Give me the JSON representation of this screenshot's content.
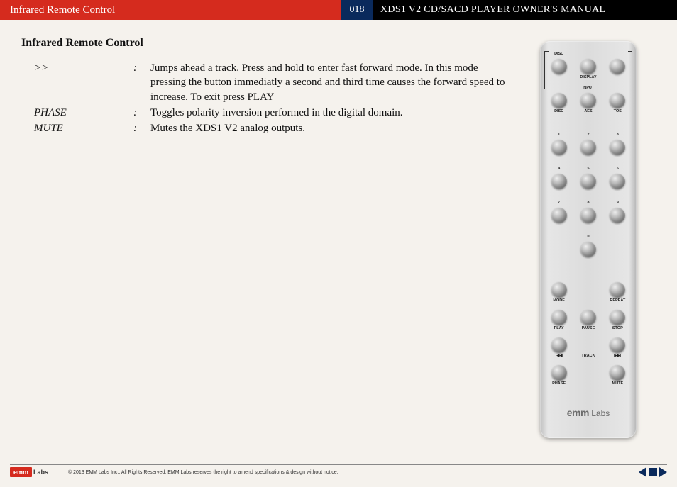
{
  "header": {
    "section_title": "Infrared Remote Control",
    "page_number": "018",
    "manual_title": "XDS1 V2 CD/SACD PLAYER OWNER'S MANUAL"
  },
  "body": {
    "heading": "Infrared Remote Control",
    "definitions": [
      {
        "term": ">>|",
        "description": "Jumps ahead a track. Press and hold to enter fast forward mode. In this mode pressing the button immediatly a second and third time causes the forward speed to increase. To exit press PLAY"
      },
      {
        "term": "PHASE",
        "description": "Toggles polarity inversion performed in the digital domain."
      },
      {
        "term": "MUTE",
        "description": "Mutes the XDS1 V2 analog outputs."
      }
    ]
  },
  "remote": {
    "top_buttons": [
      {
        "above": "DISC",
        "below": ""
      },
      {
        "above": "",
        "below": "DISPLAY"
      },
      {
        "above": "",
        "below": ""
      },
      {
        "above": "",
        "below": "DISC"
      },
      {
        "above": "INPUT",
        "below": "AES"
      },
      {
        "above": "",
        "below": "TOS"
      }
    ],
    "number_buttons": [
      "1",
      "2",
      "3",
      "4",
      "5",
      "6",
      "7",
      "8",
      "9",
      "",
      "0",
      ""
    ],
    "control_buttons": [
      {
        "below": "MODE"
      },
      {
        "below": ""
      },
      {
        "below": "REPEAT"
      },
      {
        "below": "PLAY"
      },
      {
        "below": "PAUSE"
      },
      {
        "below": "STOP"
      },
      {
        "below": "|◀◀"
      },
      {
        "below": ""
      },
      {
        "below": "▶▶|"
      },
      {
        "below": "PHASE"
      },
      {
        "below": ""
      },
      {
        "below": "MUTE"
      }
    ],
    "track_label": "TRACK",
    "logo_bold": "emm",
    "logo_light": " Labs"
  },
  "footer": {
    "logo_bold": "emm",
    "logo_light": "Labs",
    "copyright": "© 2013 EMM Labs Inc., All Rights Reserved. EMM Labs reserves the right to amend specifications & design without notice."
  },
  "colors": {
    "red": "#d52b1e",
    "blue": "#0a2a5c",
    "black": "#000000",
    "page_bg": "#f5f2ed"
  }
}
